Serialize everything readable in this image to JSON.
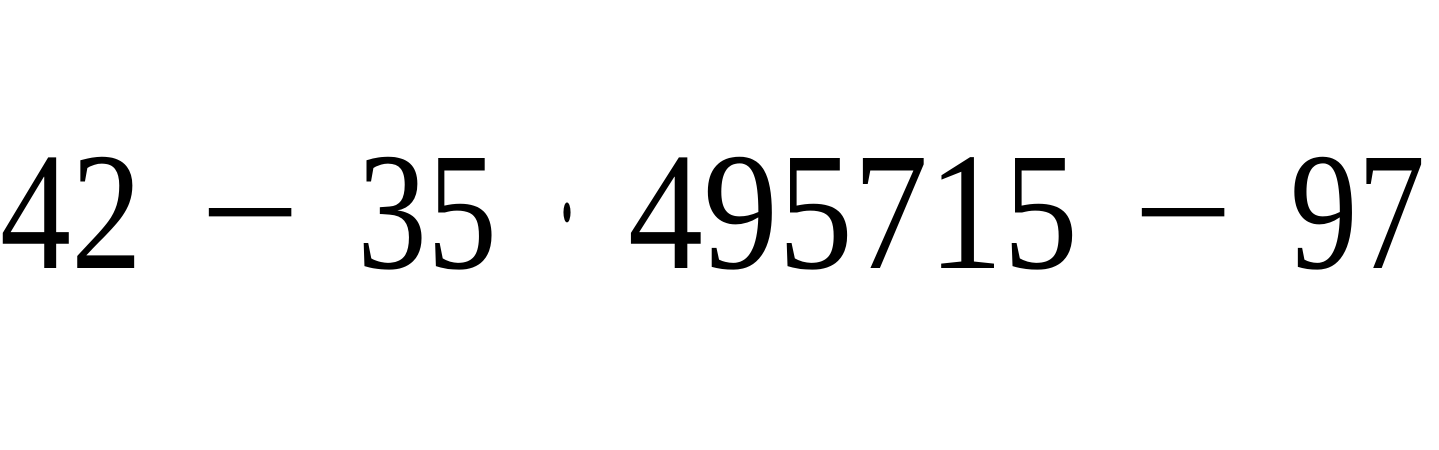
{
  "expression": {
    "tokens": [
      "42",
      "−",
      "35",
      "·",
      "495715",
      "−",
      "97"
    ]
  }
}
